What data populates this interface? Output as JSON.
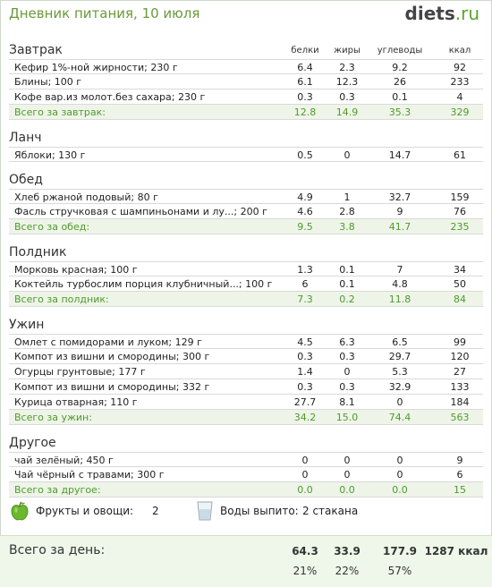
{
  "header": {
    "title": "Дневник питания, 10 июля",
    "logo_main": "diets",
    "logo_tld": ".ru"
  },
  "columns": {
    "protein": "белки",
    "fat": "жиры",
    "carbs": "углеводы",
    "kcal": "ккал"
  },
  "meals": [
    {
      "title": "Завтрак",
      "items": [
        {
          "name": "Кефир 1%-ной жирности; 230 г",
          "p": "6.4",
          "f": "2.3",
          "c": "9.2",
          "k": "92"
        },
        {
          "name": "Блины; 100 г",
          "p": "6.1",
          "f": "12.3",
          "c": "26",
          "k": "233"
        },
        {
          "name": "Кофе вар.из молот.без сахара; 230 г",
          "p": "0.3",
          "f": "0.3",
          "c": "0.1",
          "k": "4"
        }
      ],
      "total": {
        "name": "Всего за завтрак:",
        "p": "12.8",
        "f": "14.9",
        "c": "35.3",
        "k": "329"
      }
    },
    {
      "title": "Ланч",
      "items": [
        {
          "name": "Яблоки; 130 г",
          "p": "0.5",
          "f": "0",
          "c": "14.7",
          "k": "61"
        }
      ],
      "total": null
    },
    {
      "title": "Обед",
      "items": [
        {
          "name": "Хлеб ржаной подовый; 80 г",
          "p": "4.9",
          "f": "1",
          "c": "32.7",
          "k": "159"
        },
        {
          "name": "Фасль стручковая с шампиньонами и лу...; 200 г",
          "p": "4.6",
          "f": "2.8",
          "c": "9",
          "k": "76"
        }
      ],
      "total": {
        "name": "Всего за обед:",
        "p": "9.5",
        "f": "3.8",
        "c": "41.7",
        "k": "235"
      }
    },
    {
      "title": "Полдник",
      "items": [
        {
          "name": "Морковь красная; 100 г",
          "p": "1.3",
          "f": "0.1",
          "c": "7",
          "k": "34"
        },
        {
          "name": "Коктейль турбослим порция клубничный...; 100 г",
          "p": "6",
          "f": "0.1",
          "c": "4.8",
          "k": "50"
        }
      ],
      "total": {
        "name": "Всего за полдник:",
        "p": "7.3",
        "f": "0.2",
        "c": "11.8",
        "k": "84"
      }
    },
    {
      "title": "Ужин",
      "items": [
        {
          "name": "Омлет с помидорами и луком; 129 г",
          "p": "4.5",
          "f": "6.3",
          "c": "6.5",
          "k": "99"
        },
        {
          "name": "Компот из вишни и смородины; 300 г",
          "p": "0.3",
          "f": "0.3",
          "c": "29.7",
          "k": "120"
        },
        {
          "name": "Огурцы грунтовые; 177 г",
          "p": "1.4",
          "f": "0",
          "c": "5.3",
          "k": "27"
        },
        {
          "name": "Компот из вишни и смородины; 332 г",
          "p": "0.3",
          "f": "0.3",
          "c": "32.9",
          "k": "133"
        },
        {
          "name": "Курица отварная; 110 г",
          "p": "27.7",
          "f": "8.1",
          "c": "0",
          "k": "184"
        }
      ],
      "total": {
        "name": "Всего за ужин:",
        "p": "34.2",
        "f": "15.0",
        "c": "74.4",
        "k": "563"
      }
    },
    {
      "title": "Другое",
      "items": [
        {
          "name": "чай зелёный; 450 г",
          "p": "0",
          "f": "0",
          "c": "0",
          "k": "9"
        },
        {
          "name": "Чай чёрный с травами; 300 г",
          "p": "0",
          "f": "0",
          "c": "0",
          "k": "6"
        }
      ],
      "total": {
        "name": "Всего за другое:",
        "p": "0.0",
        "f": "0.0",
        "c": "0.0",
        "k": "15"
      }
    }
  ],
  "extras": {
    "fruits_label": "Фрукты и овощи:",
    "fruits_value": "2",
    "water_label": "Воды выпито:",
    "water_value": "2 стакана"
  },
  "day_total": {
    "label": "Всего за день:",
    "protein": "64.3",
    "fat": "33.9",
    "carbs": "177.9",
    "kcal": "1287 ккал",
    "protein_pct": "21%",
    "fat_pct": "22%",
    "carbs_pct": "57%"
  },
  "colors": {
    "accent_green": "#4f9a2c",
    "total_bg": "#eef5e8"
  },
  "icons": {
    "fruit": "green-apple-icon",
    "water": "water-glass-icon"
  }
}
